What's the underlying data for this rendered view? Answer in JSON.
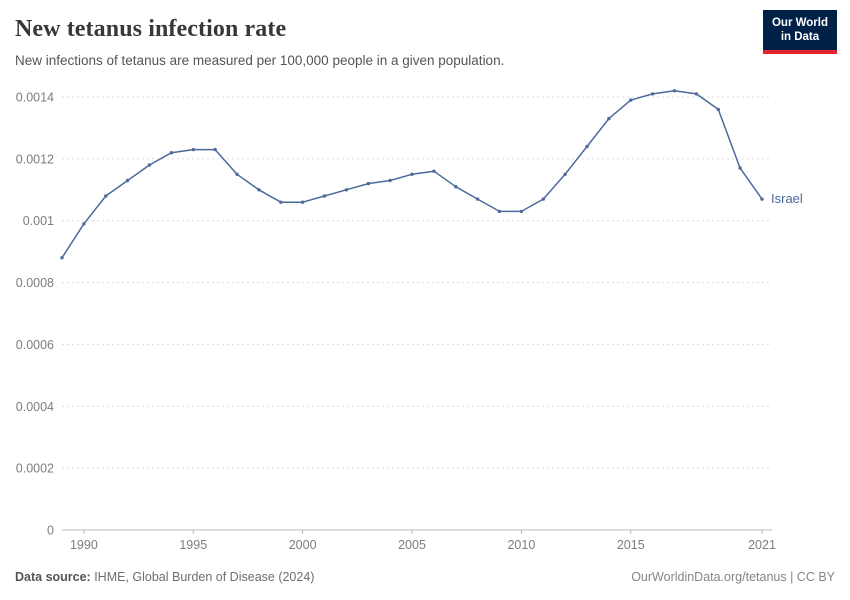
{
  "header": {
    "title": "New tetanus infection rate",
    "subtitle": "New infections of tetanus are measured per 100,000 people in a given population.",
    "logo_line1": "Our World",
    "logo_line2": "in Data"
  },
  "footer": {
    "source_label": "Data source:",
    "source_text": " IHME, Global Burden of Disease (2024)",
    "link_text": "OurWorldinData.org/tetanus | CC BY"
  },
  "colors": {
    "series": "#4c6a9c",
    "grid": "#dcdcdc",
    "axis": "#b9b9b9",
    "tick_text": "#7d7d7d",
    "logo_bg": "#002147",
    "logo_accent": "#e0232e"
  },
  "chart_data": {
    "type": "line",
    "title": "New tetanus infection rate",
    "subtitle": "New infections of tetanus are measured per 100,000 people in a given population.",
    "xlabel": "",
    "ylabel": "",
    "xlim": [
      1989,
      2021
    ],
    "ylim": [
      0,
      0.0014
    ],
    "x_ticks": [
      1990,
      1995,
      2000,
      2005,
      2010,
      2015,
      2021
    ],
    "y_ticks": [
      0,
      0.0002,
      0.0004,
      0.0006,
      0.0008,
      0.001,
      0.0012,
      0.0014
    ],
    "grid": "horizontal-dashed",
    "legend_position": "end-of-line-label",
    "series": [
      {
        "name": "Israel",
        "x": [
          1989,
          1990,
          1991,
          1992,
          1993,
          1994,
          1995,
          1996,
          1997,
          1998,
          1999,
          2000,
          2001,
          2002,
          2003,
          2004,
          2005,
          2006,
          2007,
          2008,
          2009,
          2010,
          2011,
          2012,
          2013,
          2014,
          2015,
          2016,
          2017,
          2018,
          2019,
          2020,
          2021
        ],
        "values": [
          0.00088,
          0.00099,
          0.00108,
          0.00113,
          0.00118,
          0.00122,
          0.00123,
          0.00123,
          0.00115,
          0.0011,
          0.00106,
          0.00106,
          0.00108,
          0.0011,
          0.00112,
          0.00113,
          0.00115,
          0.00116,
          0.00111,
          0.00107,
          0.00103,
          0.00103,
          0.00107,
          0.00115,
          0.00124,
          0.00133,
          0.00139,
          0.00141,
          0.00142,
          0.00141,
          0.00136,
          0.00117,
          0.00107
        ]
      }
    ]
  }
}
